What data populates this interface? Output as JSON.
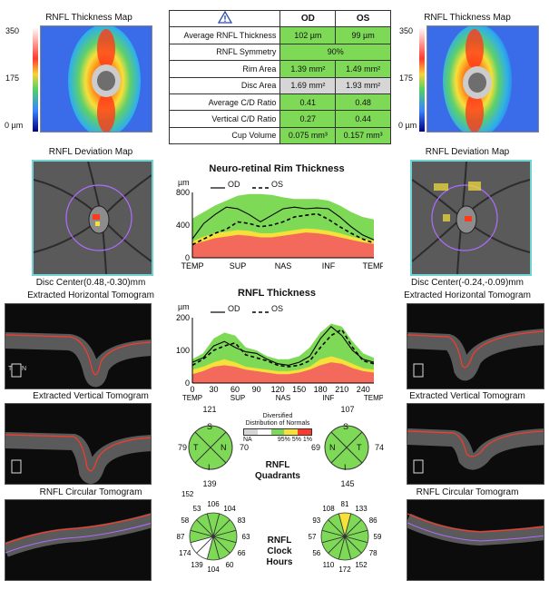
{
  "left": {
    "thickness_map_title": "RNFL Thickness Map",
    "scale_top": "350",
    "scale_mid": "175",
    "scale_bottom": "0 µm",
    "deviation_title": "RNFL Deviation Map",
    "disc_center": "Disc Center(0.48,-0.30)mm",
    "horizontal_title": "Extracted Horizontal Tomogram",
    "vertical_title": "Extracted Vertical Tomogram",
    "circular_title": "RNFL Circular Tomogram"
  },
  "right": {
    "thickness_map_title": "RNFL Thickness Map",
    "scale_top": "350",
    "scale_mid": "175",
    "scale_bottom": "0 µm",
    "deviation_title": "RNFL Deviation Map",
    "disc_center": "Disc Center(-0.24,-0.09)mm",
    "horizontal_title": "Extracted Horizontal Tomogram",
    "vertical_title": "Extracted Vertical Tomogram",
    "circular_title": "RNFL Circular Tomogram"
  },
  "table": {
    "col_od": "OD",
    "col_os": "OS",
    "rows": [
      {
        "label": "Average RNFL Thickness",
        "od": "102 µm",
        "os": "99 µm"
      },
      {
        "label": "RNFL Symmetry",
        "both": "90%"
      },
      {
        "label": "Rim Area",
        "od": "1.39 mm²",
        "os": "1.49 mm²"
      },
      {
        "label": "Disc Area",
        "od": "1.69 mm²",
        "os": "1.93 mm²"
      },
      {
        "label": "Average C/D Ratio",
        "od": "0.41",
        "os": "0.48"
      },
      {
        "label": "Vertical C/D Ratio",
        "od": "0.27",
        "os": "0.44"
      },
      {
        "label": "Cup Volume",
        "od": "0.075 mm³",
        "os": "0.157 mm³"
      }
    ],
    "colors": {
      "green": "#7ed957",
      "gray": "#d6d6d6"
    }
  },
  "legend": {
    "od": "OD",
    "os": "OS"
  },
  "chart_data": [
    {
      "type": "line",
      "title": "Neuro-retinal Rim Thickness",
      "ylabel": "µm",
      "y_ticks": [
        "800",
        "400",
        "0"
      ],
      "x_ticks": [
        "TEMP",
        "SUP",
        "NAS",
        "INF",
        "TEMP"
      ],
      "ylim": [
        0,
        800
      ],
      "x": [
        0,
        1,
        2,
        3,
        4,
        5,
        6,
        7,
        8,
        9,
        10,
        11,
        12,
        13,
        14,
        15,
        16
      ],
      "series": [
        {
          "name": "OD",
          "values": [
            230,
            420,
            530,
            620,
            600,
            530,
            440,
            520,
            600,
            620,
            600,
            610,
            600,
            500,
            380,
            280,
            220
          ]
        },
        {
          "name": "OS",
          "values": [
            160,
            230,
            300,
            350,
            440,
            420,
            380,
            400,
            440,
            500,
            520,
            540,
            470,
            380,
            300,
            230,
            180
          ]
        }
      ],
      "normal_bands": {
        "red_top": [
          160,
          200,
          240,
          260,
          280,
          270,
          250,
          250,
          270,
          290,
          310,
          300,
          280,
          250,
          220,
          190,
          170
        ],
        "yellow_top": [
          200,
          260,
          300,
          320,
          340,
          330,
          300,
          300,
          320,
          340,
          360,
          350,
          330,
          300,
          260,
          230,
          210
        ],
        "green_top": [
          480,
          560,
          640,
          700,
          760,
          780,
          780,
          770,
          740,
          720,
          720,
          720,
          700,
          640,
          560,
          500,
          470
        ]
      }
    },
    {
      "type": "line",
      "title": "RNFL Thickness",
      "ylabel": "µm",
      "y_ticks": [
        "200",
        "100",
        "0"
      ],
      "x_ticks": [
        "0",
        "30",
        "60",
        "90",
        "120",
        "150",
        "180",
        "210",
        "240"
      ],
      "x_labels": [
        "TEMP",
        "SUP",
        "NAS",
        "INF",
        "TEMP"
      ],
      "ylim": [
        0,
        220
      ],
      "xlim": [
        0,
        255
      ],
      "x": [
        0,
        15,
        30,
        45,
        60,
        75,
        90,
        105,
        120,
        135,
        150,
        165,
        180,
        195,
        210,
        225,
        240,
        255
      ],
      "series": [
        {
          "name": "OD",
          "values": [
            70,
            85,
            125,
            140,
            120,
            105,
            100,
            80,
            65,
            60,
            70,
            90,
            150,
            190,
            160,
            110,
            80,
            70
          ]
        },
        {
          "name": "OS",
          "values": [
            60,
            80,
            110,
            125,
            135,
            95,
            85,
            75,
            60,
            55,
            60,
            75,
            120,
            160,
            180,
            120,
            75,
            65
          ]
        }
      ],
      "normal_bands": {
        "red_top": [
          30,
          40,
          55,
          60,
          55,
          45,
          40,
          35,
          30,
          30,
          35,
          45,
          60,
          70,
          65,
          50,
          40,
          35
        ],
        "yellow_top": [
          45,
          55,
          70,
          80,
          70,
          55,
          50,
          45,
          40,
          40,
          45,
          55,
          80,
          90,
          80,
          65,
          50,
          45
        ],
        "green_top": [
          80,
          100,
          150,
          170,
          160,
          120,
          110,
          90,
          80,
          80,
          90,
          120,
          170,
          200,
          190,
          140,
          100,
          85
        ]
      }
    }
  ],
  "quadrants": {
    "od": {
      "S": "121",
      "T": "79",
      "N": "70",
      "I": "139"
    },
    "os": {
      "S": "107",
      "T": "69",
      "N": "74",
      "I": "145"
    },
    "letters": {
      "s": "S",
      "t": "T",
      "n": "N",
      "i": "I"
    },
    "title_line1": "RNFL",
    "title_line2": "Quadrants"
  },
  "distribution": {
    "title_line1": "Diversified",
    "title_line2": "Distribution of Normals",
    "na": "NA",
    "pcts": "95% 5% 1%"
  },
  "clock": {
    "title_line1": "RNFL",
    "title_line2": "Clock",
    "title_line3": "Hours",
    "od": [
      "106",
      "104",
      "83",
      "63",
      "66",
      "60",
      "104",
      "139",
      "174",
      "87",
      "58",
      "53",
      "152"
    ],
    "od_labels": {
      "12": "106",
      "1": "104",
      "2": "83",
      "3": "63",
      "4": "66",
      "5": "60",
      "6": "104",
      "7": "139",
      "8": "174",
      "9": "87",
      "10": "58",
      "11": "53",
      "11b": "152"
    },
    "os_labels": {
      "12": "81",
      "1": "133",
      "2": "86",
      "3": "59",
      "4": "78",
      "5": "152",
      "6": "172",
      "7": "110",
      "8": "56",
      "9": "57",
      "10": "93",
      "11": "108"
    }
  }
}
